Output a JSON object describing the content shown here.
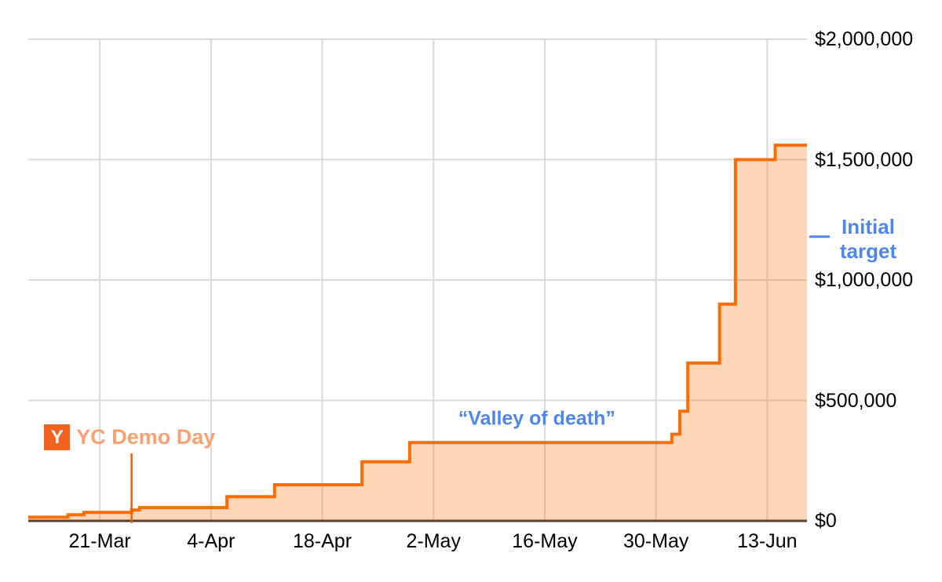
{
  "chart_data": {
    "type": "area",
    "step_style": "step-after",
    "title": "",
    "xlabel": "",
    "ylabel": "",
    "grid": true,
    "legend": "none",
    "points": [
      {
        "date": "12-Mar",
        "value": 15000
      },
      {
        "date": "17-Mar",
        "value": 25000
      },
      {
        "date": "19-Mar",
        "value": 35000
      },
      {
        "date": "25-Mar",
        "value": 45000
      },
      {
        "date": "26-Mar",
        "value": 55000
      },
      {
        "date": "6-Apr",
        "value": 100000
      },
      {
        "date": "12-Apr",
        "value": 150000
      },
      {
        "date": "23-Apr",
        "value": 245000
      },
      {
        "date": "29-Apr",
        "value": 325000
      },
      {
        "date": "1-Jun",
        "value": 360000
      },
      {
        "date": "2-Jun",
        "value": 455000
      },
      {
        "date": "3-Jun",
        "value": 655000
      },
      {
        "date": "7-Jun",
        "value": 900000
      },
      {
        "date": "9-Jun",
        "value": 1500000
      },
      {
        "date": "14-Jun",
        "value": 1560000
      },
      {
        "date": "18-Jun",
        "value": 1560000
      }
    ],
    "x_domain": [
      "12-Mar",
      "18-Jun"
    ],
    "x_ticks": [
      "21-Mar",
      "4-Apr",
      "18-Apr",
      "2-May",
      "16-May",
      "30-May",
      "13-Jun"
    ],
    "y_ticks": [
      {
        "value": 0,
        "label": "$0"
      },
      {
        "value": 500000,
        "label": "$500,000"
      },
      {
        "value": 1000000,
        "label": "$1,000,000"
      },
      {
        "value": 1500000,
        "label": "$1,500,000"
      },
      {
        "value": 2000000,
        "label": "$2,000,000"
      }
    ],
    "ylim": [
      0,
      2000000
    ],
    "colors": {
      "line": "#ff6d01",
      "fill": "rgba(255,109,1,0.28)",
      "gridline": "#d9d9d9",
      "axis": "#3a3a3a",
      "tick_text": "#000000"
    }
  },
  "annotations": {
    "demo_day": {
      "label": "YC Demo Day",
      "logo_letter": "Y",
      "line_date": "25-Mar",
      "line_top_value": 280000,
      "anchor_date": "14-Mar",
      "anchor_value": 400000,
      "line_color": "#e8610c",
      "square_color": "#f4621f",
      "text_color": "#f9a171"
    },
    "valley_of_death": {
      "label": "“Valley of death”",
      "center_date": "15-May",
      "center_value": 425000,
      "color": "#4e86ec"
    },
    "initial_target": {
      "label_line1": "Initial",
      "label_line2": "target",
      "value": 1180000,
      "color": "#4e86ec"
    }
  }
}
